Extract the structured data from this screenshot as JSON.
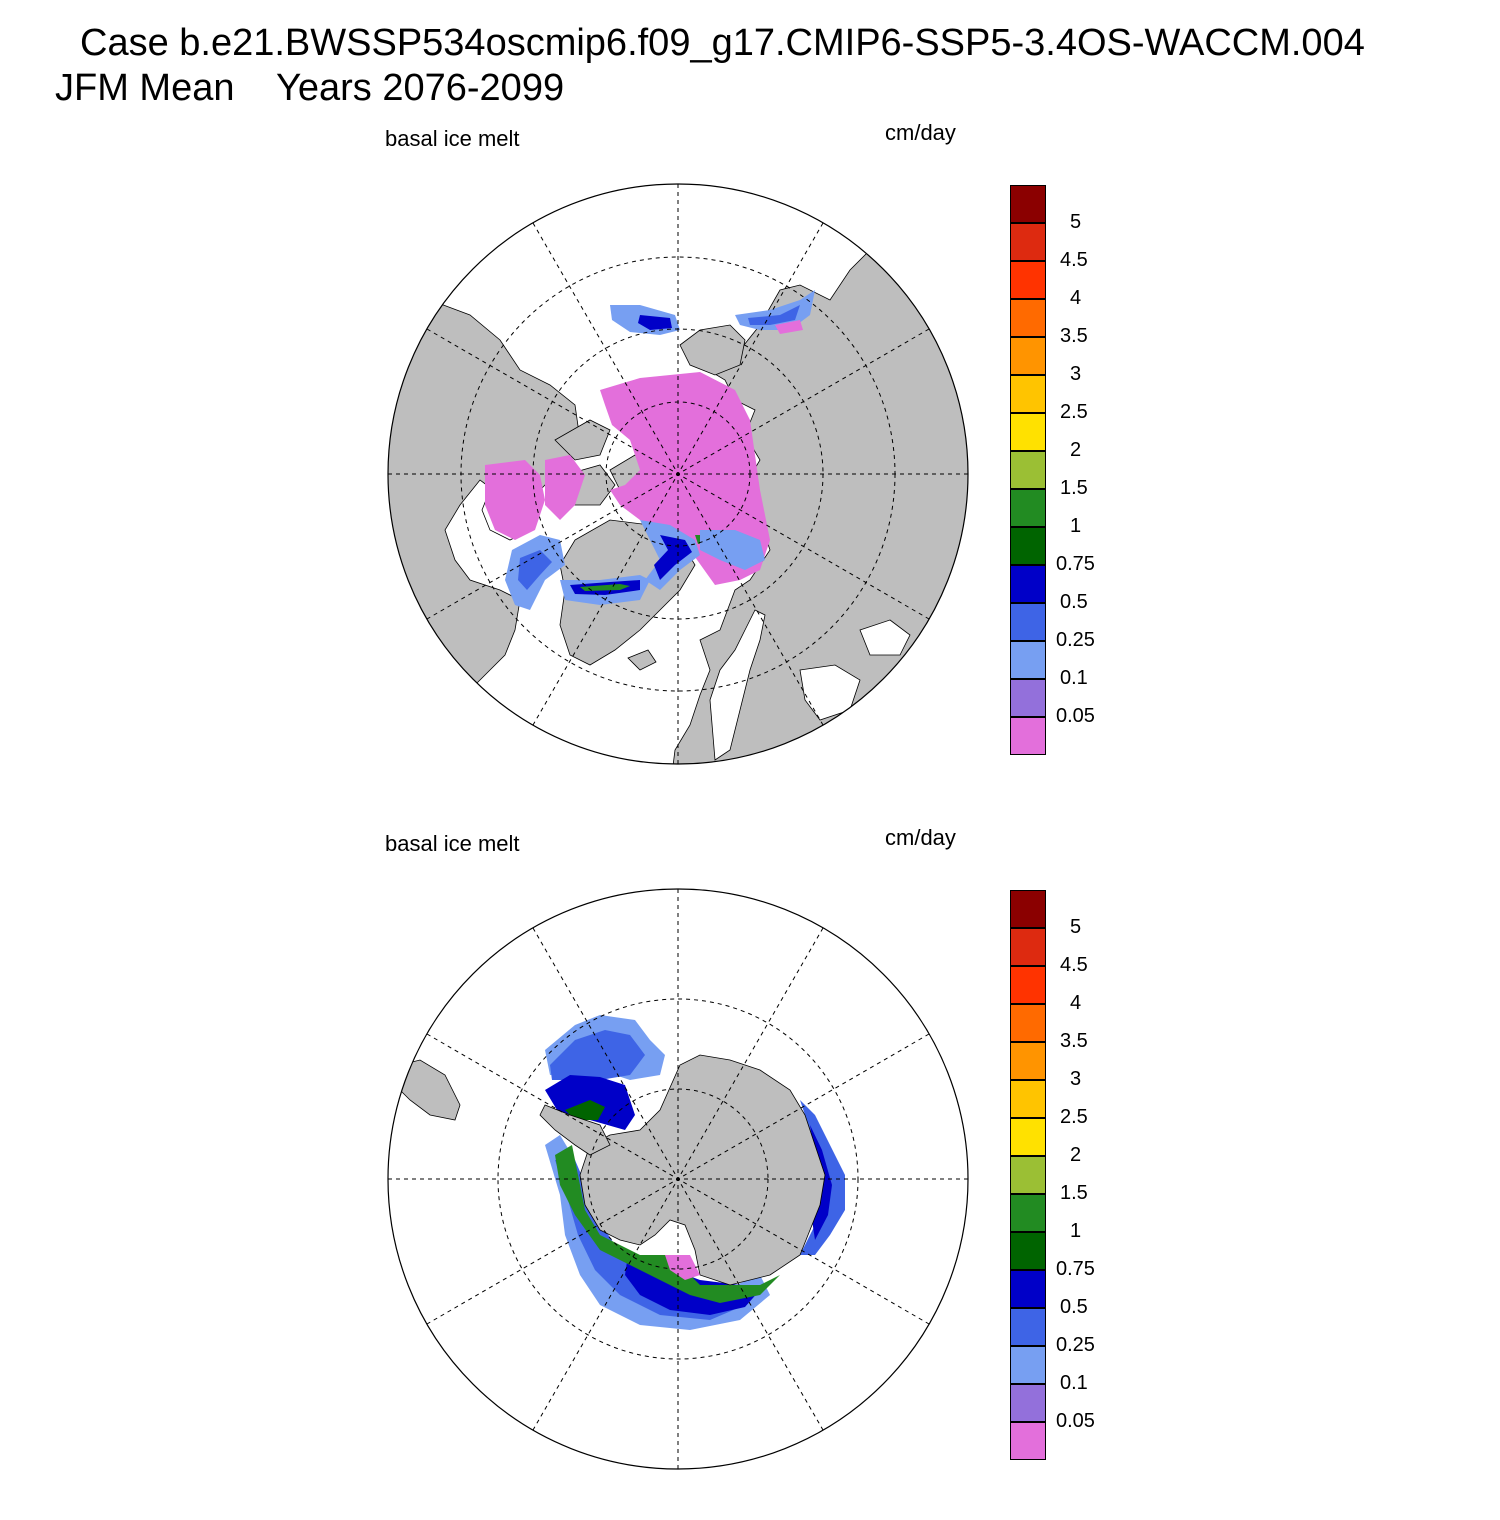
{
  "title": {
    "line1": "Case b.e21.BWSSP534oscmip6.f09_g17.CMIP6-SSP5-3.4OS-WACCM.004",
    "line2": "JFM Mean    Years 2076-2099"
  },
  "panels": [
    {
      "id": "north",
      "variable_label": "basal ice melt",
      "units_label": "cm/day",
      "hemisphere": "Northern Hemisphere polar stereographic",
      "colors": {
        "land": "#bebebe",
        "ocean": "#ffffff"
      }
    },
    {
      "id": "south",
      "variable_label": "basal ice melt",
      "units_label": "cm/day",
      "hemisphere": "Southern Hemisphere polar stereographic",
      "colors": {
        "land": "#bebebe",
        "ocean": "#ffffff"
      }
    }
  ],
  "colorbar": {
    "levels": [
      "0.05",
      "0.1",
      "0.25",
      "0.5",
      "0.75",
      "1",
      "1.5",
      "2",
      "2.5",
      "3",
      "3.5",
      "4",
      "4.5",
      "5"
    ],
    "colors": [
      "#e36fdb",
      "#9370db",
      "#779ff2",
      "#3e64e6",
      "#0000c8",
      "#006400",
      "#228b22",
      "#9bbf34",
      "#ffe100",
      "#ffc400",
      "#ff9400",
      "#ff6a00",
      "#ff3300",
      "#dd2a10",
      "#8b0000"
    ]
  }
}
